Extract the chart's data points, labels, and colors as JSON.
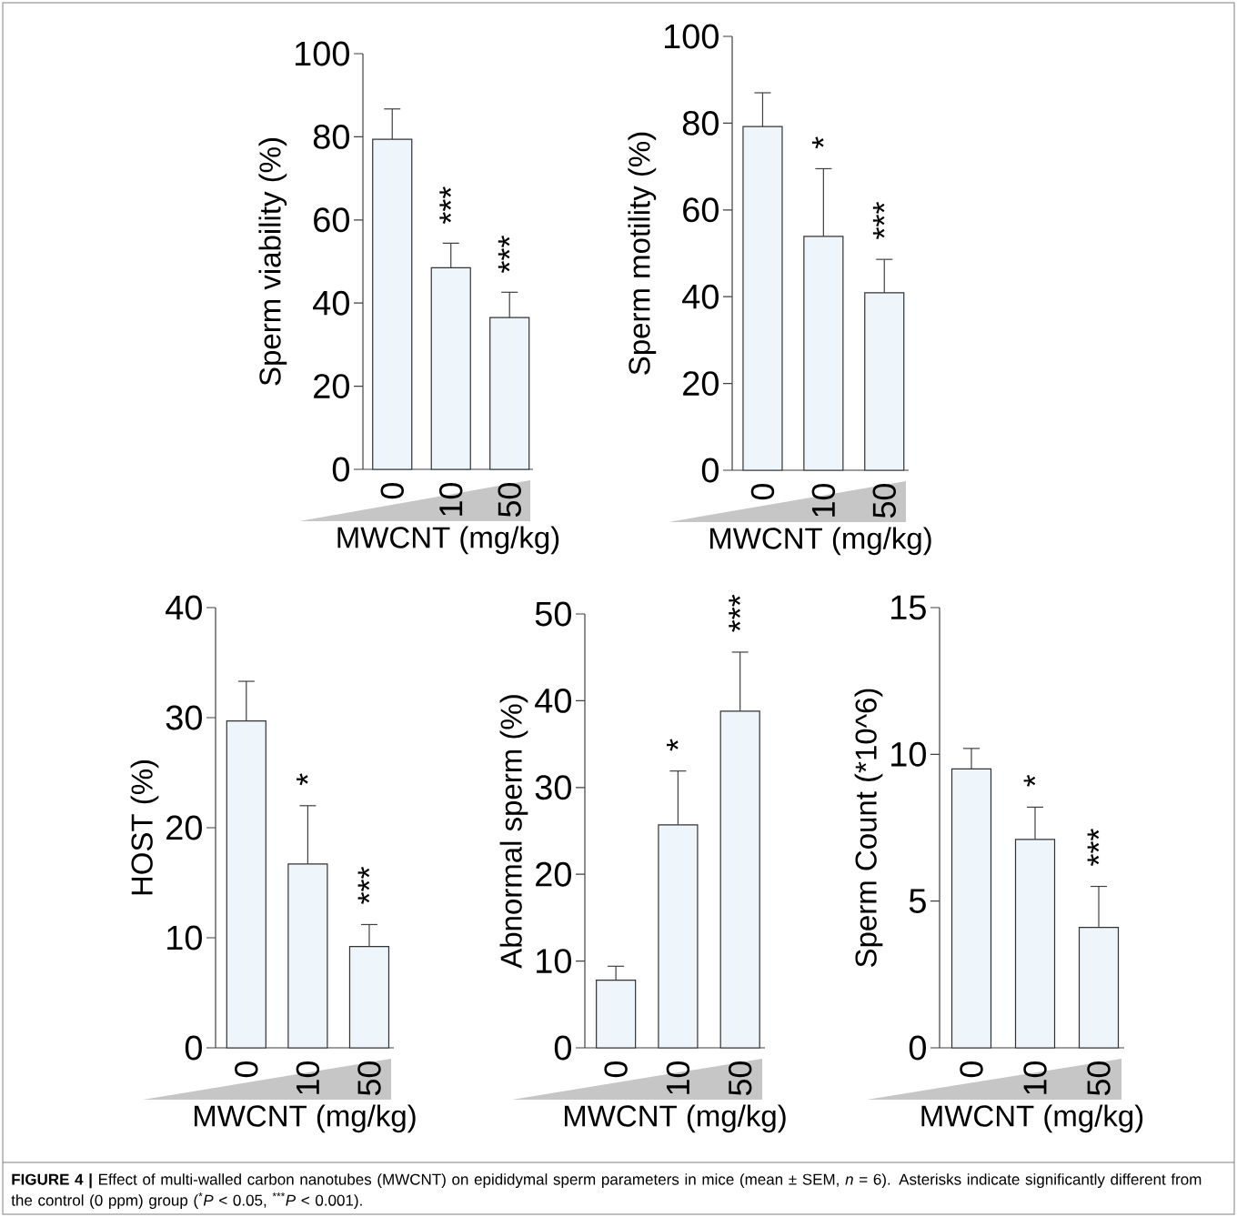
{
  "chart_data": [
    {
      "type": "bar",
      "ylabel": "Sperm viability (%)",
      "xlabel": "MWCNT (mg/kg)",
      "categories": [
        "0",
        "10",
        "50"
      ],
      "values": [
        79.4,
        48.5,
        36.5
      ],
      "errors": [
        7.3,
        5.9,
        6.1
      ],
      "color": "#eef5fb",
      "ylim": [
        0,
        100
      ],
      "yticks": [
        0,
        20,
        40,
        60,
        80,
        100
      ],
      "annotations": [
        "***",
        "***"
      ]
    },
    {
      "type": "bar",
      "ylabel": "Sperm motility (%)",
      "xlabel": "MWCNT (mg/kg)",
      "categories": [
        "0",
        "10",
        "50"
      ],
      "values": [
        79.2,
        53.9,
        40.9
      ],
      "errors": [
        7.8,
        15.6,
        7.7
      ],
      "color": "#eef5fb",
      "ylim": [
        0,
        100
      ],
      "yticks": [
        0,
        20,
        40,
        60,
        80,
        100
      ],
      "annotations": [
        "*",
        "***"
      ]
    },
    {
      "type": "bar",
      "ylabel": "HOST (%)",
      "xlabel": "MWCNT (mg/kg)",
      "categories": [
        "0",
        "10",
        "50"
      ],
      "values": [
        29.7,
        16.7,
        9.2
      ],
      "errors": [
        3.6,
        5.3,
        2.0
      ],
      "color": "#eef5fb",
      "ylim": [
        0,
        40
      ],
      "yticks": [
        0,
        10,
        20,
        30,
        40
      ],
      "annotations": [
        "*",
        "***"
      ]
    },
    {
      "type": "bar",
      "ylabel": "Abnormal sperm (%)",
      "xlabel": "MWCNT (mg/kg)",
      "categories": [
        "0",
        "10",
        "50"
      ],
      "values": [
        7.8,
        25.7,
        38.8
      ],
      "errors": [
        1.6,
        6.2,
        6.8
      ],
      "color": "#eef5fb",
      "ylim": [
        0,
        50
      ],
      "yticks": [
        0,
        10,
        20,
        30,
        40,
        50
      ],
      "annotations": [
        "*",
        "***"
      ]
    },
    {
      "type": "bar",
      "ylabel": "Sperm Count (*10^6)",
      "xlabel": "MWCNT (mg/kg)",
      "categories": [
        "0",
        "10",
        "50"
      ],
      "values": [
        9.5,
        7.1,
        4.1
      ],
      "errors": [
        0.7,
        1.1,
        1.4
      ],
      "color": "#eef5fb",
      "ylim": [
        0,
        15
      ],
      "yticks": [
        0,
        5,
        10,
        15
      ],
      "annotations": [
        "*",
        "***"
      ]
    },
    {
      "type": "other",
      "annotations": [
        "**FIGURE 4 |** Effect of multi-walled carbon nanotubes (MWCNT) on epididymal sperm parameters in mice (mean ± SEM, *n* = 6). Asterisks indicate significantly different from the control (0 ppm) group ($^{*}$*P* < 0.05, $^{***}$*P* < 0.001)."
      ]
    }
  ]
}
